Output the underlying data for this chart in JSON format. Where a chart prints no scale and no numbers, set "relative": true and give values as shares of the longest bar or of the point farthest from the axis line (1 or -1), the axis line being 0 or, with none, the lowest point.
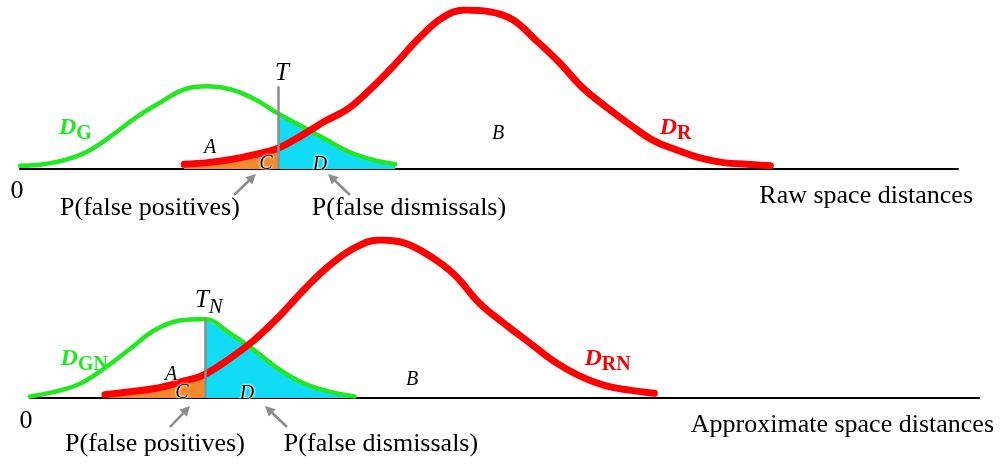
{
  "chart_data": [
    {
      "type": "line",
      "relative": true,
      "xlabel": "Raw space distances",
      "categories": [
        null,
        null,
        null,
        null,
        null,
        null,
        null,
        null,
        null,
        null,
        null,
        null,
        null,
        null,
        null,
        null,
        null,
        null,
        null,
        null,
        null,
        null,
        null,
        null,
        null,
        null,
        null,
        null,
        null,
        null,
        null,
        null,
        null,
        null,
        null,
        null,
        null,
        null,
        null,
        null,
        null
      ],
      "series": [
        {
          "name": "D$_{G}$",
          "color": "#22e822",
          "values": [
            0.02,
            0.03,
            0.06,
            0.12,
            0.22,
            0.33,
            0.42,
            0.5,
            0.52,
            0.5,
            0.44,
            0.35,
            0.27,
            0.19,
            0.11,
            0.06,
            0.03,
            null,
            null,
            null,
            null,
            null,
            null,
            null,
            null,
            null,
            null,
            null,
            null,
            null,
            null,
            null,
            null,
            null,
            null,
            null,
            null,
            null,
            null,
            null,
            null
          ]
        },
        {
          "name": "D$_{R}$",
          "color": "#ff0000",
          "values": [
            null,
            null,
            null,
            null,
            null,
            null,
            null,
            0.03,
            0.04,
            0.06,
            0.09,
            0.13,
            0.21,
            0.3,
            0.38,
            0.51,
            0.66,
            0.82,
            0.95,
            1,
            0.99,
            0.94,
            0.81,
            0.67,
            0.51,
            0.39,
            0.28,
            0.18,
            0.12,
            0.07,
            0.04,
            0.03,
            0.02,
            null,
            null,
            null,
            null,
            null,
            null,
            null,
            null
          ]
        },
        {
          "type": "area",
          "color": "#f4892c",
          "values": [
            null,
            null,
            null,
            null,
            null,
            null,
            null,
            0.03,
            0.04,
            0.06,
            0.09,
            0.13,
            null,
            null,
            null,
            null,
            null,
            null,
            null,
            null,
            null,
            null,
            null,
            null,
            null,
            null,
            null,
            null,
            null,
            null,
            null,
            null,
            null,
            null,
            null,
            null,
            null,
            null,
            null,
            null,
            null
          ]
        },
        {
          "type": "area",
          "color": "#12dcf5",
          "values": [
            null,
            null,
            null,
            null,
            null,
            null,
            null,
            null,
            null,
            null,
            null,
            0.35,
            0.27,
            0.19,
            0.11,
            0.06,
            0.03,
            null,
            null,
            null,
            null,
            null,
            null,
            null,
            null,
            null,
            null,
            null,
            null,
            null,
            null,
            null,
            null,
            null,
            null,
            null,
            null,
            null,
            null,
            null,
            null
          ]
        }
      ],
      "annotations": [
        "0",
        "T",
        "A",
        "B",
        "C",
        "D",
        "P(false positives)",
        "P(false dismissals)"
      ]
    },
    {
      "type": "line",
      "relative": true,
      "xlabel": "Approximate space distances",
      "categories": [
        null,
        null,
        null,
        null,
        null,
        null,
        null,
        null,
        null,
        null,
        null,
        null,
        null,
        null,
        null,
        null,
        null,
        null,
        null,
        null,
        null,
        null,
        null,
        null,
        null,
        null,
        null,
        null,
        null,
        null,
        null,
        null,
        null,
        null,
        null,
        null,
        null,
        null,
        null
      ],
      "series": [
        {
          "name": "D$_{GN}$",
          "color": "#22e822",
          "values": [
            0.01,
            0.04,
            0.09,
            0.19,
            0.31,
            0.43,
            0.49,
            0.5,
            0.41,
            0.3,
            0.18,
            0.09,
            0.04,
            0.01,
            null,
            null,
            null,
            null,
            null,
            null,
            null,
            null,
            null,
            null,
            null,
            null,
            null,
            null,
            null,
            null,
            null,
            null,
            null,
            null,
            null,
            null,
            null,
            null,
            null
          ]
        },
        {
          "name": "D$_{RN}$",
          "color": "#ff0000",
          "values": [
            null,
            null,
            null,
            0.02,
            0.04,
            0.06,
            0.1,
            0.15,
            0.25,
            0.37,
            0.52,
            0.69,
            0.84,
            0.95,
            1,
            0.98,
            0.9,
            0.78,
            0.6,
            0.47,
            0.35,
            0.23,
            0.14,
            0.08,
            0.05,
            0.03,
            null,
            null,
            null,
            null,
            null,
            null,
            null,
            null,
            null,
            null,
            null,
            null,
            null
          ]
        },
        {
          "type": "area",
          "color": "#f4892c",
          "values": [
            null,
            null,
            null,
            0.02,
            0.04,
            0.06,
            0.1,
            0.15,
            null,
            null,
            null,
            null,
            null,
            null,
            null,
            null,
            null,
            null,
            null,
            null,
            null,
            null,
            null,
            null,
            null,
            null,
            null,
            null,
            null,
            null,
            null,
            null,
            null,
            null,
            null,
            null,
            null,
            null,
            null
          ]
        },
        {
          "type": "area",
          "color": "#12dcf5",
          "values": [
            null,
            null,
            null,
            null,
            null,
            null,
            null,
            0.5,
            0.41,
            0.3,
            0.18,
            0.09,
            0.04,
            0.01,
            null,
            null,
            null,
            null,
            null,
            null,
            null,
            null,
            null,
            null,
            null,
            null,
            null,
            null,
            null,
            null,
            null,
            null,
            null,
            null,
            null,
            null,
            null,
            null,
            null
          ]
        }
      ],
      "annotations": [
        "0",
        "T$_{N}$",
        "A",
        "B",
        "C",
        "D",
        "P(false positives)",
        "P(false dismissals)"
      ]
    }
  ]
}
